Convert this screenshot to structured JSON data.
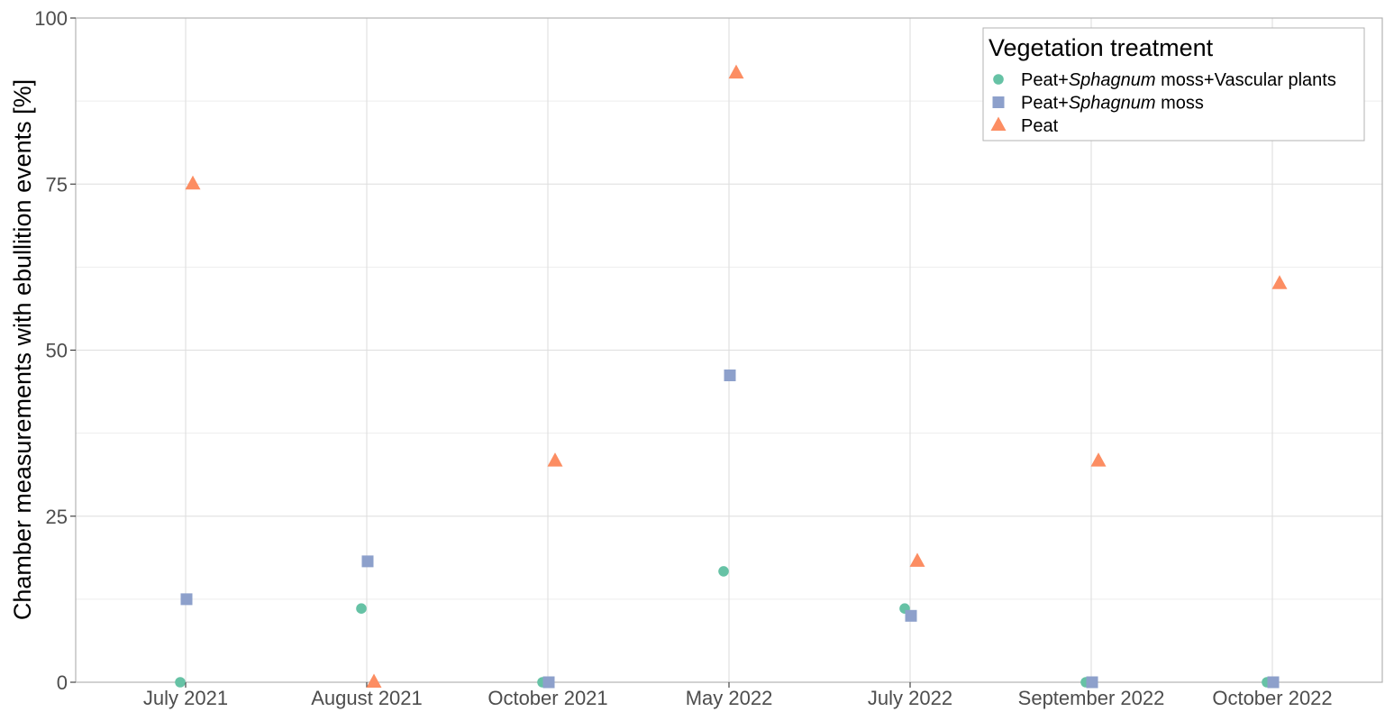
{
  "chart_data": {
    "type": "scatter",
    "title": "",
    "xlabel": "",
    "ylabel": "Chamber measurements with ebullition events [%]",
    "ylim": [
      0,
      100
    ],
    "yticks": [
      0,
      25,
      50,
      75,
      100
    ],
    "grid": true,
    "categories": [
      "July 2021",
      "August 2021",
      "October 2021",
      "May 2022",
      "July 2022",
      "September 2022",
      "October 2022"
    ],
    "series": [
      {
        "name": "Peat+Sphagnum moss+Vascular plants",
        "name_parts": [
          "Peat+",
          "Sphagnum",
          " moss+Vascular plants"
        ],
        "shape": "circle",
        "color": "#66c2a5",
        "values": [
          0,
          11.1,
          0,
          16.7,
          11.1,
          0,
          0
        ]
      },
      {
        "name": "Peat+Sphagnum moss",
        "name_parts": [
          "Peat+",
          "Sphagnum",
          " moss"
        ],
        "shape": "square",
        "color": "#8da0cb",
        "values": [
          12.5,
          18.2,
          0,
          46.2,
          10,
          0,
          0
        ]
      },
      {
        "name": "Peat",
        "name_parts": [
          "Peat",
          "",
          ""
        ],
        "shape": "triangle",
        "color": "#fc8d62",
        "values": [
          75,
          0,
          33.3,
          91.7,
          18.2,
          33.3,
          60
        ]
      }
    ],
    "legend": {
      "title": "Vegetation treatment",
      "position": "top-right"
    }
  }
}
